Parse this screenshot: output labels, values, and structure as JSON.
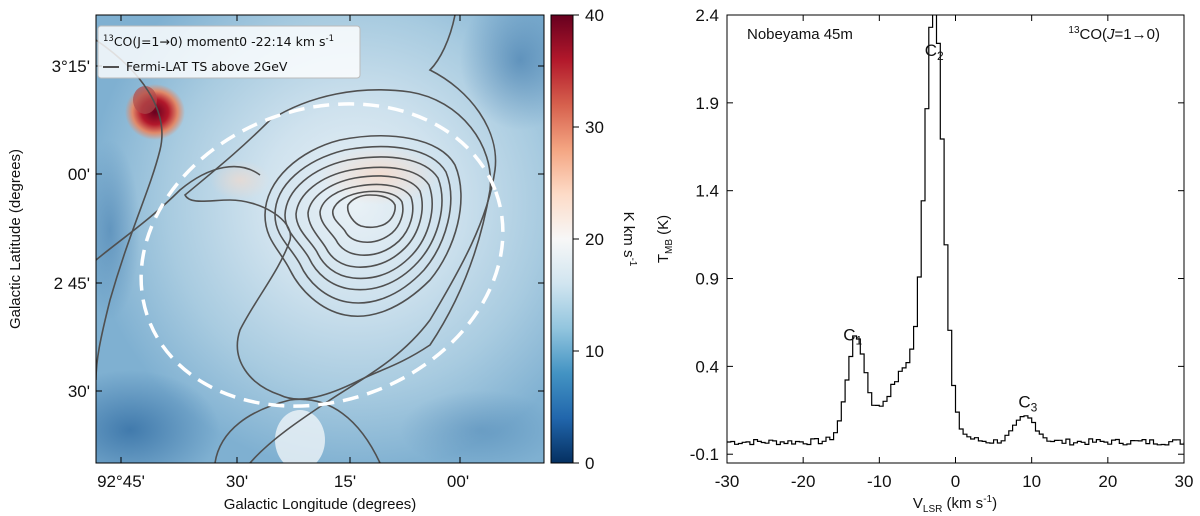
{
  "chart_data": [
    {
      "type": "heatmap",
      "panel": "left",
      "xlabel": "Galactic Longitude (degrees)",
      "ylabel": "Galactic Latitude (degrees)",
      "x_ticks": [
        "92°45'",
        "30'",
        "15'",
        "00'"
      ],
      "y_ticks": [
        "3°15'",
        "00'",
        "2 45'",
        "30'"
      ],
      "x_tick_values_deg": [
        92.75,
        92.5,
        92.25,
        92.0
      ],
      "y_tick_values_deg": [
        3.25,
        3.0,
        2.75,
        2.5
      ],
      "legend": {
        "line1_sup": "13",
        "line1_text": "CO(J=1→0) moment0 -22:14 km s",
        "line1_exp": "-1",
        "line2_text": "Fermi-LAT TS above 2GeV"
      },
      "colorbar": {
        "label": "K km s",
        "label_exp": "-1",
        "range": [
          0,
          40
        ],
        "ticks": [
          "0",
          "10",
          "20",
          "30",
          "40"
        ],
        "tick_values": [
          0,
          10,
          20,
          30,
          40
        ],
        "cmap": "RdBu_r"
      },
      "colors": {
        "contour": "#505050",
        "ellipse": "#ffffff"
      }
    },
    {
      "type": "line",
      "panel": "right",
      "title": "Nobeyama 45m",
      "annotation_sup": "13",
      "annotation_text": "CO(",
      "annotation_J": "J",
      "annotation_tail": "=1→0)",
      "xlabel_main": "V",
      "xlabel_sub": "LSR",
      "xlabel_units": " (km s",
      "xlabel_exp": "-1",
      "xlabel_close": ")",
      "ylabel_main": "T",
      "ylabel_sub": "MB",
      "ylabel_units": " (K)",
      "xlim": [
        -30,
        30
      ],
      "ylim": [
        -0.15,
        2.4
      ],
      "x_ticks": [
        "-30",
        "-20",
        "-10",
        "0",
        "10",
        "20",
        "30"
      ],
      "x_tick_values": [
        -30,
        -20,
        -10,
        0,
        10,
        20,
        30
      ],
      "y_ticks": [
        "-0.1",
        "0.4",
        "0.9",
        "1.4",
        "1.9",
        "2.4"
      ],
      "y_tick_values": [
        -0.1,
        0.4,
        0.9,
        1.4,
        1.9,
        2.4
      ],
      "components": [
        {
          "label": "C",
          "sub": "1",
          "x": -13.5,
          "y": 0.58
        },
        {
          "label": "C",
          "sub": "2",
          "x": -2.8,
          "y": 2.2
        },
        {
          "label": "C",
          "sub": "3",
          "x": 9.5,
          "y": 0.2
        }
      ],
      "series": [
        {
          "name": "13CO spectrum",
          "style": "step",
          "gaussians": [
            {
              "amp": 0.55,
              "center": -13.3,
              "sigma": 1.2
            },
            {
              "amp": 2.22,
              "center": -3.0,
              "sigma": 1.15
            },
            {
              "amp": 0.42,
              "center": -5.5,
              "sigma": 3.0
            },
            {
              "amp": 0.14,
              "center": 9.0,
              "sigma": 1.4
            },
            {
              "amp": 0.06,
              "center": -9.5,
              "sigma": 3.5
            }
          ],
          "baseline": -0.03,
          "channel_width": 0.5
        }
      ],
      "colors": {
        "line": "#000000"
      }
    }
  ]
}
